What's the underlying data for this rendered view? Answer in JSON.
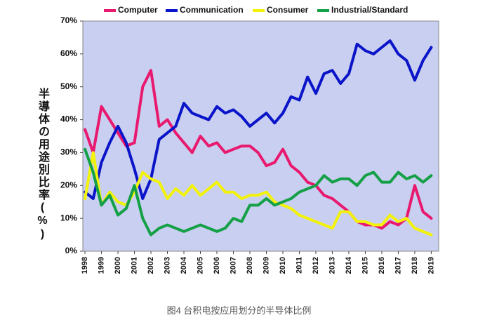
{
  "chart_data": {
    "type": "line",
    "y_label": "半導体の用途別比率(%)",
    "caption": "图4 台积电按应用划分的半导体比例",
    "x": [
      1998,
      1998.5,
      1999,
      1999.5,
      2000,
      2000.5,
      2001,
      2001.5,
      2002,
      2002.5,
      2003,
      2003.5,
      2004,
      2004.5,
      2005,
      2005.5,
      2006,
      2006.5,
      2007,
      2007.5,
      2008,
      2008.5,
      2009,
      2009.5,
      2010,
      2010.5,
      2011,
      2011.5,
      2012,
      2012.5,
      2013,
      2013.5,
      2014,
      2014.5,
      2015,
      2015.5,
      2016,
      2016.5,
      2017,
      2017.5,
      2018,
      2018.5,
      2019
    ],
    "series": [
      {
        "name": "Computer",
        "color": "#e8196e",
        "values": [
          37,
          30,
          44,
          40,
          36,
          32,
          33,
          50,
          55,
          38,
          40,
          36,
          33,
          30,
          35,
          32,
          33,
          30,
          31,
          32,
          32,
          30,
          26,
          27,
          31,
          26,
          24,
          21,
          20,
          17,
          16,
          14,
          12,
          9,
          8,
          8,
          7,
          9,
          8,
          10,
          20,
          12,
          10
        ]
      },
      {
        "name": "Communication",
        "color": "#0a14c8",
        "values": [
          18,
          16,
          27,
          33,
          38,
          33,
          25,
          16,
          22,
          34,
          36,
          38,
          45,
          42,
          41,
          40,
          44,
          42,
          43,
          41,
          38,
          40,
          42,
          39,
          42,
          47,
          46,
          53,
          48,
          54,
          55,
          51,
          54,
          63,
          61,
          60,
          62,
          64,
          60,
          58,
          52,
          58,
          62
        ]
      },
      {
        "name": "Consumer",
        "color": "#f2f20a",
        "values": [
          16,
          30,
          14,
          18,
          15,
          14,
          18,
          24,
          22,
          21,
          16,
          19,
          17,
          20,
          17,
          19,
          21,
          18,
          18,
          16,
          17,
          17,
          18,
          15,
          14,
          13,
          11,
          10,
          9,
          8,
          7,
          12,
          12,
          9,
          9,
          8,
          8,
          11,
          9,
          10,
          7,
          6,
          5
        ]
      },
      {
        "name": "Industrial/Standard",
        "color": "#14a046",
        "values": [
          31,
          24,
          14,
          17,
          11,
          13,
          20,
          10,
          5,
          7,
          8,
          7,
          6,
          7,
          8,
          7,
          6,
          7,
          10,
          9,
          14,
          14,
          16,
          14,
          15,
          16,
          18,
          19,
          20,
          23,
          21,
          22,
          22,
          20,
          23,
          24,
          21,
          21,
          24,
          22,
          23,
          21,
          23
        ]
      }
    ],
    "xlim": [
      1997.87,
      2019.45
    ],
    "xticks": [
      1998,
      1999,
      2000,
      2001,
      2002,
      2003,
      2004,
      2005,
      2006,
      2007,
      2008,
      2009,
      2010,
      2011,
      2012,
      2013,
      2014,
      2015,
      2016,
      2017,
      2018,
      2019
    ],
    "ylim": [
      0,
      70
    ],
    "yticks": [
      {
        "value": 0,
        "label": "0%"
      },
      {
        "value": 10,
        "label": "10%"
      },
      {
        "value": 20,
        "label": "20%"
      },
      {
        "value": 30,
        "label": "30%"
      },
      {
        "value": 40,
        "label": "40%"
      },
      {
        "value": 50,
        "label": "50%"
      },
      {
        "value": 60,
        "label": "60%"
      },
      {
        "value": 70,
        "label": "70%"
      }
    ],
    "grid": false,
    "plot_background": "#c9cff0",
    "legend": "top"
  }
}
